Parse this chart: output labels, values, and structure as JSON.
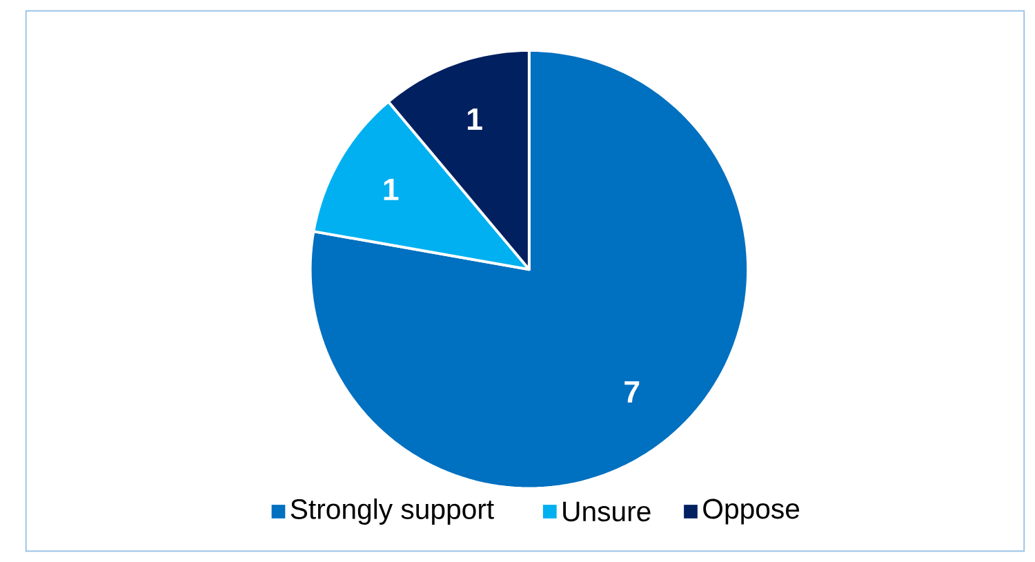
{
  "chart_data": {
    "type": "pie",
    "categories": [
      "Strongly support",
      "Unsure",
      "Oppose"
    ],
    "values": [
      7,
      1,
      1
    ],
    "colors": [
      "#0070c0",
      "#00b0f0",
      "#002060"
    ],
    "data_labels": true,
    "legend": "bottom"
  }
}
